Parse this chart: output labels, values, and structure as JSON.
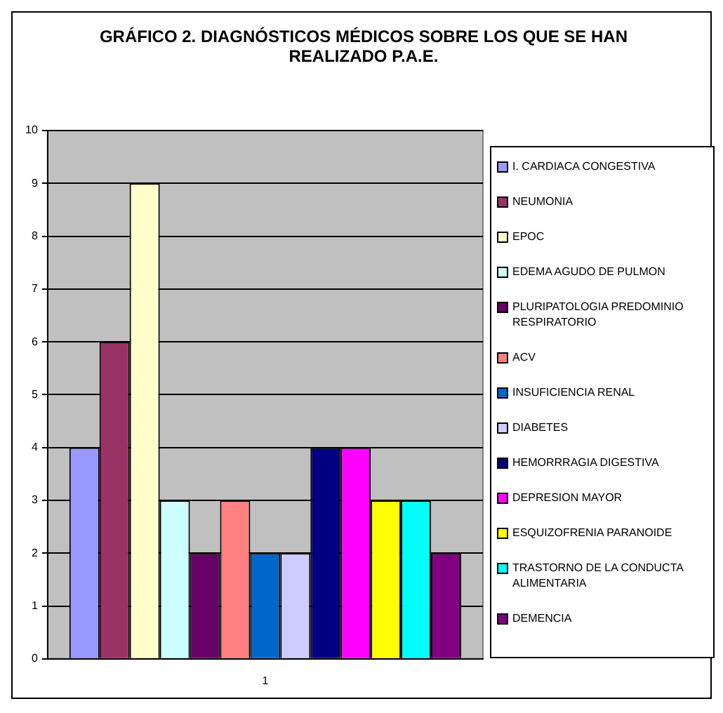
{
  "chart_data": {
    "type": "bar",
    "title": "GRÁFICO 2. DIAGNÓSTICOS MÉDICOS SOBRE LOS QUE SE HAN REALIZADO P.A.E.",
    "categories": [
      "1"
    ],
    "ylim": [
      0,
      10
    ],
    "yticks": [
      0,
      1,
      2,
      3,
      4,
      5,
      6,
      7,
      8,
      9,
      10
    ],
    "grid": "y",
    "legend": "right",
    "series": [
      {
        "name": "I. CARDIACA CONGESTIVA",
        "color": "#9999ff",
        "values": [
          4
        ]
      },
      {
        "name": "NEUMONIA",
        "color": "#993366",
        "values": [
          6
        ]
      },
      {
        "name": "EPOC",
        "color": "#ffffcc",
        "values": [
          9
        ]
      },
      {
        "name": "EDEMA AGUDO DE PULMON",
        "color": "#ccffff",
        "values": [
          3
        ]
      },
      {
        "name": "PLURIPATOLOGIA PREDOMINIO RESPIRATORIO",
        "color": "#660066",
        "values": [
          2
        ]
      },
      {
        "name": "ACV",
        "color": "#ff8080",
        "values": [
          3
        ]
      },
      {
        "name": "INSUFICIENCIA RENAL",
        "color": "#0066cc",
        "values": [
          2
        ]
      },
      {
        "name": "DIABETES",
        "color": "#ccccff",
        "values": [
          2
        ]
      },
      {
        "name": "HEMORRRAGIA DIGESTIVA",
        "color": "#000080",
        "values": [
          4
        ]
      },
      {
        "name": "DEPRESION MAYOR",
        "color": "#ff00ff",
        "values": [
          4
        ]
      },
      {
        "name": "ESQUIZOFRENIA PARANOIDE",
        "color": "#ffff00",
        "values": [
          3
        ]
      },
      {
        "name": "TRASTORNO DE LA CONDUCTA ALIMENTARIA",
        "color": "#00ffff",
        "values": [
          3
        ]
      },
      {
        "name": "DEMENCIA",
        "color": "#800080",
        "values": [
          2
        ]
      }
    ]
  }
}
